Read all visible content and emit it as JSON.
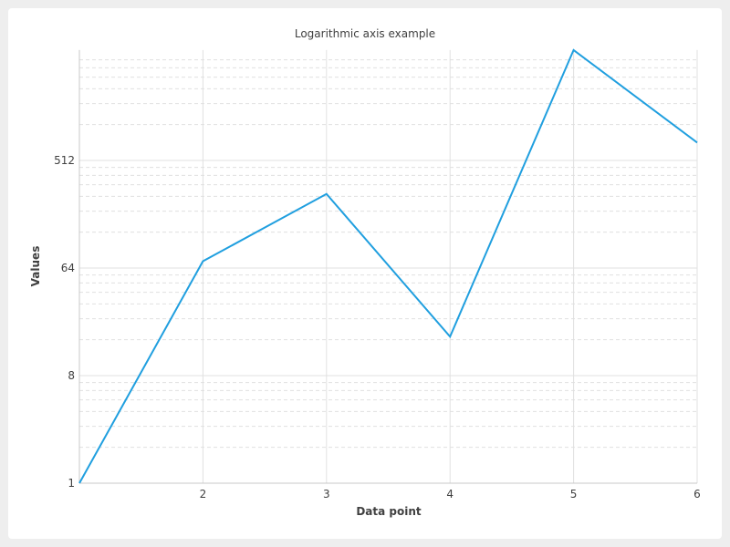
{
  "chart_data": {
    "type": "line",
    "title": "Logarithmic axis example",
    "xlabel": "Data point",
    "ylabel": "Values",
    "x": [
      1,
      2,
      3,
      4,
      5,
      6
    ],
    "values": [
      1,
      73,
      268,
      17,
      4325,
      723
    ],
    "xlim": [
      1,
      6
    ],
    "ylim": [
      1,
      4325
    ],
    "yscale": "log",
    "ybase": 8,
    "x_ticks": [
      "2",
      "3",
      "4",
      "5",
      "6"
    ],
    "y_ticks": [
      "1",
      "8",
      "64",
      "512"
    ],
    "grid": true,
    "minor_grid": true,
    "legend": "none",
    "colors": {
      "line": "#209fdf",
      "grid": "#e0e0e0",
      "background": "#ffffff",
      "page": "#eeeeee"
    }
  }
}
